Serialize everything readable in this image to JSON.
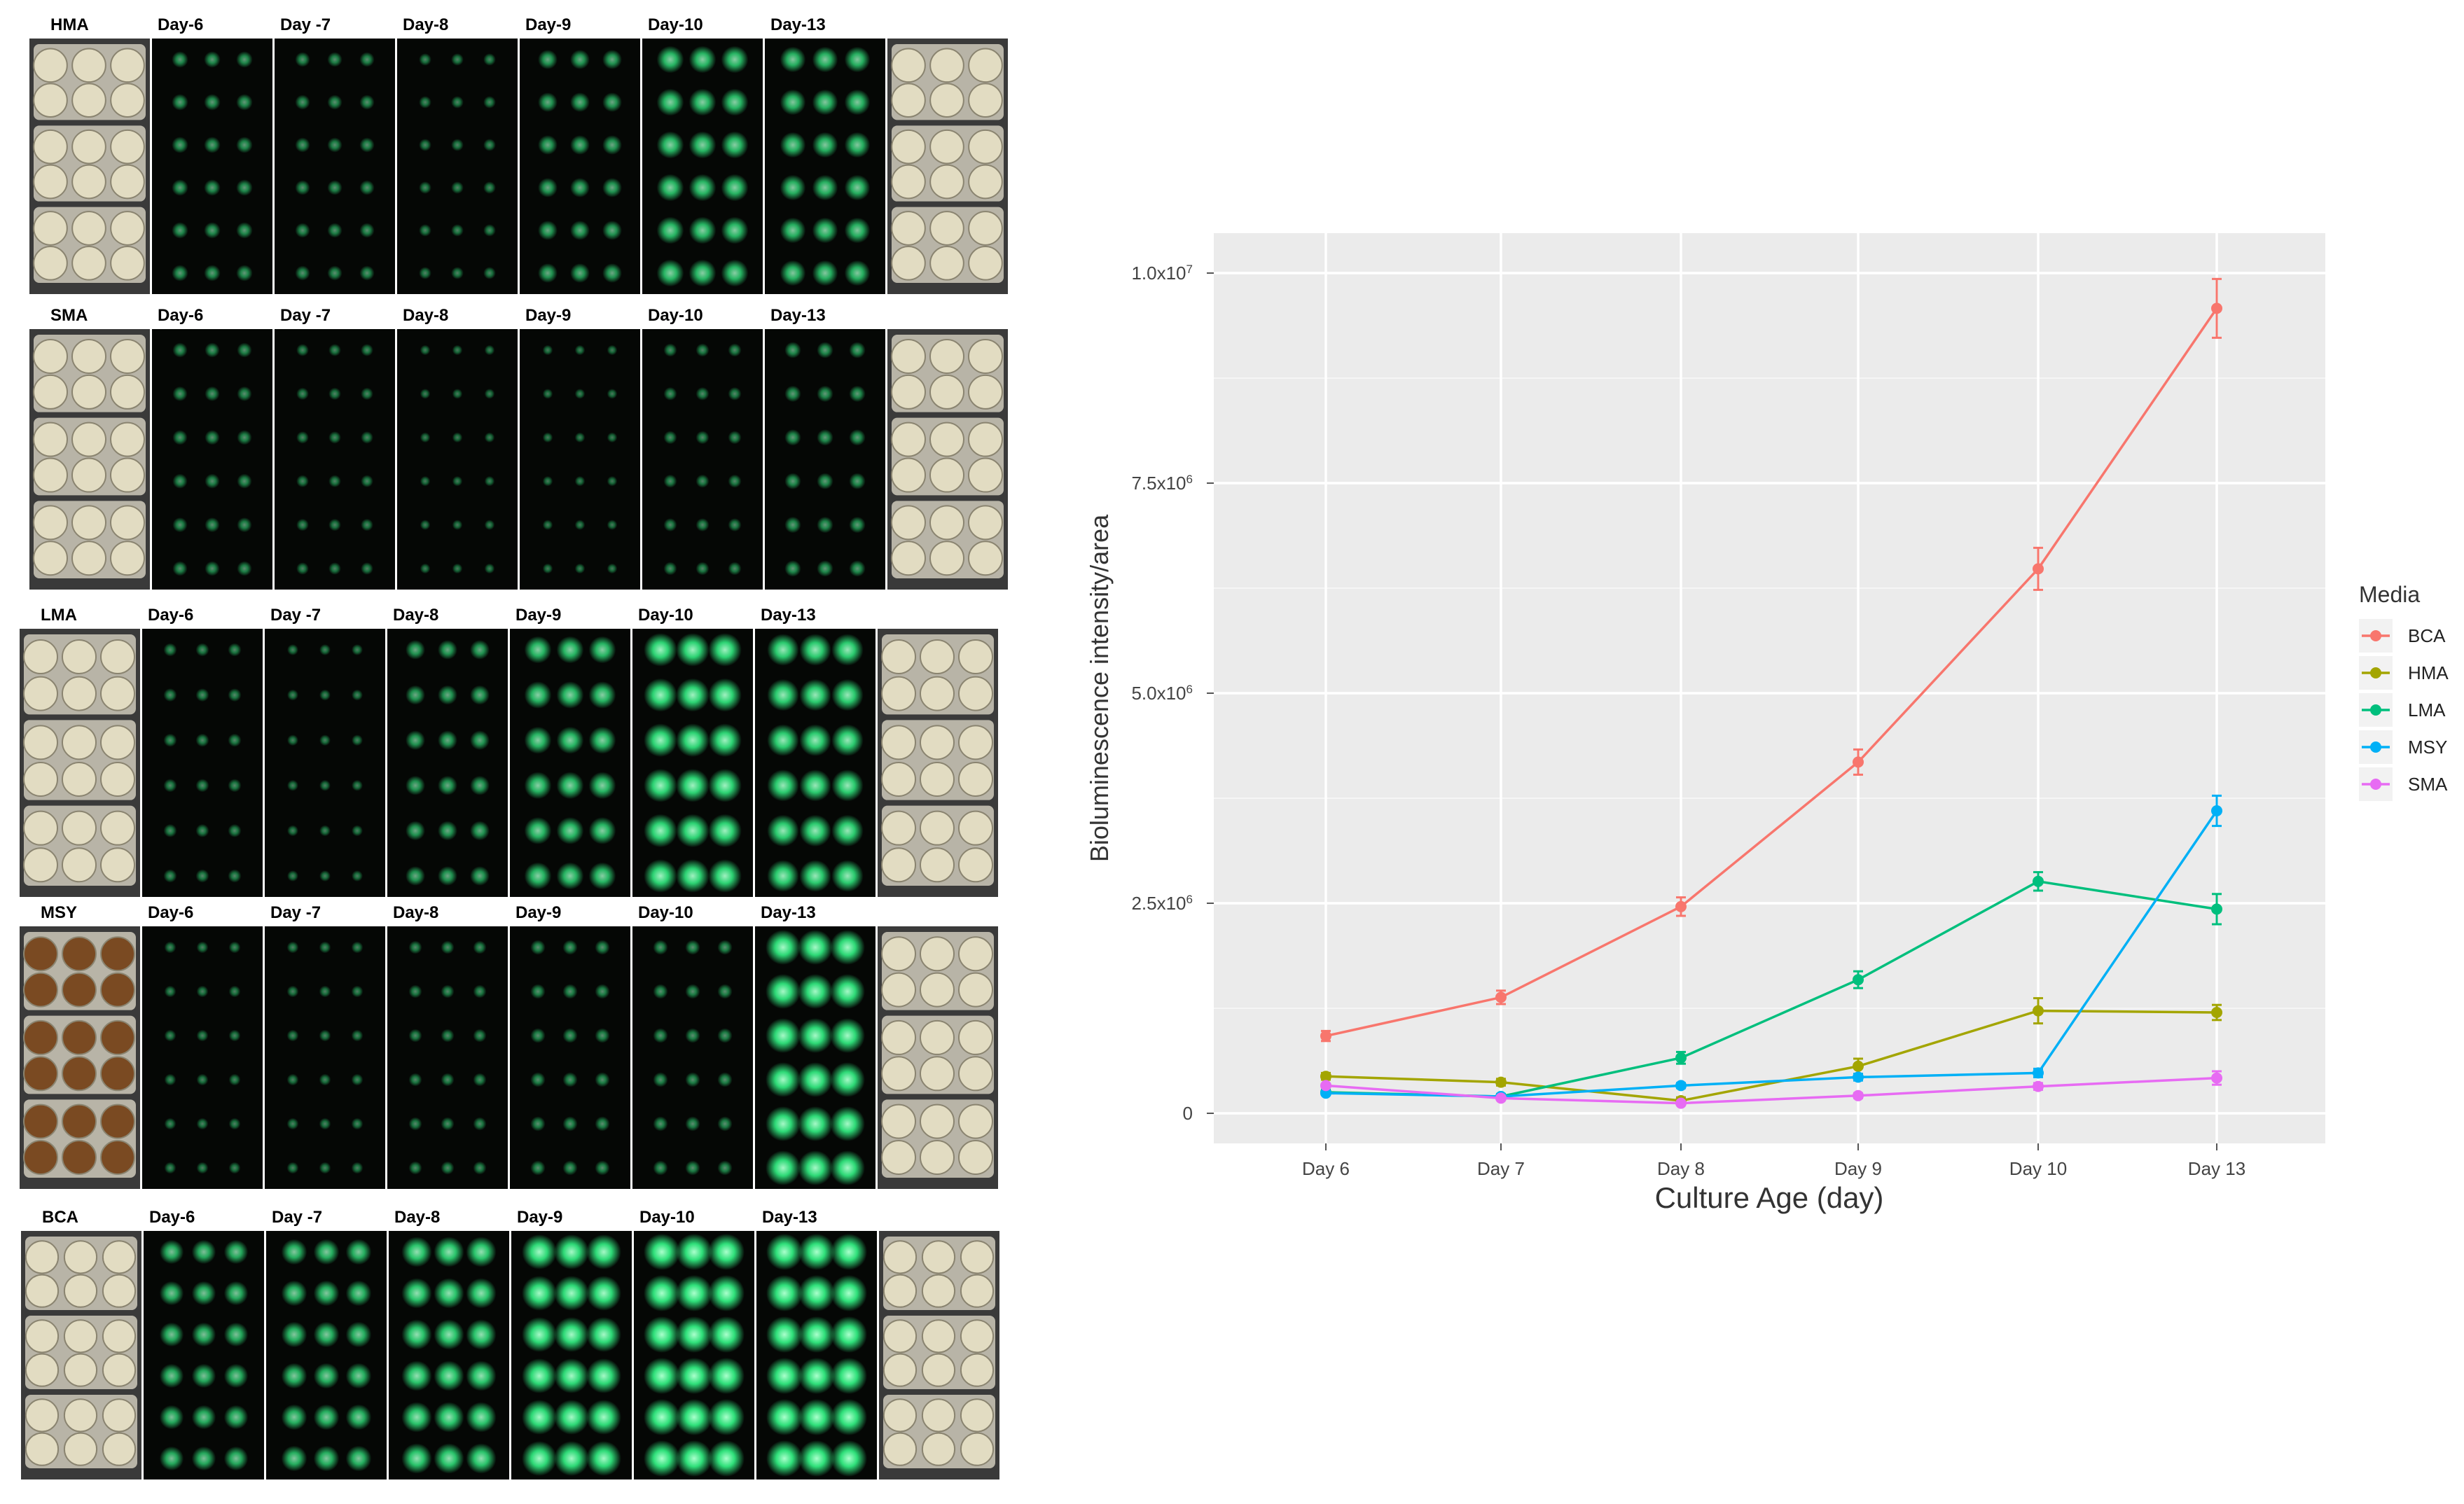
{
  "panels": {
    "day_labels": [
      "Day-6",
      "Day -7",
      "Day-8",
      "Day-9",
      "Day-10",
      "Day-13"
    ],
    "rows": [
      {
        "name": "HMA"
      },
      {
        "name": "SMA"
      },
      {
        "name": "LMA"
      },
      {
        "name": "MSY"
      },
      {
        "name": "BCA"
      }
    ],
    "colors": {
      "glow": "#2fe07a",
      "dark": "#050705",
      "plate_bright": "#e2dcc2",
      "plate_brown": "#7a4a22"
    }
  },
  "chart_data": {
    "type": "line",
    "categories": [
      "Day 6",
      "Day 7",
      "Day 8",
      "Day 9",
      "Day 10",
      "Day 13"
    ],
    "xlabel": "Culture Age (day)",
    "ylabel": "Bioluminescence intensity/area",
    "ylim": [
      0,
      10800000
    ],
    "yticks": [
      {
        "value": 0,
        "base": "0",
        "exp": ""
      },
      {
        "value": 2500000,
        "base": "2.5x10",
        "exp": "6"
      },
      {
        "value": 5000000,
        "base": "5.0x10",
        "exp": "6"
      },
      {
        "value": 7500000,
        "base": "7.5x10",
        "exp": "6"
      },
      {
        "value": 10000000,
        "base": "1.0x10",
        "exp": "7"
      }
    ],
    "grid": true,
    "legend_title": "Media",
    "legend_position": "right",
    "series": [
      {
        "name": "BCA",
        "color": "#F8766D",
        "values": [
          920000,
          1380000,
          2460000,
          4180000,
          6480000,
          9580000
        ],
        "errors": [
          60000,
          80000,
          110000,
          150000,
          250000,
          350000
        ]
      },
      {
        "name": "HMA",
        "color": "#A3A500",
        "values": [
          440000,
          370000,
          150000,
          560000,
          1220000,
          1200000
        ],
        "errors": [
          40000,
          40000,
          40000,
          90000,
          150000,
          90000
        ]
      },
      {
        "name": "LMA",
        "color": "#00BF7D",
        "values": [
          250000,
          200000,
          660000,
          1590000,
          2760000,
          2430000
        ],
        "errors": [
          30000,
          30000,
          70000,
          100000,
          110000,
          180000
        ]
      },
      {
        "name": "MSY",
        "color": "#00B0F6",
        "values": [
          240000,
          200000,
          330000,
          430000,
          480000,
          3600000
        ],
        "errors": [
          20000,
          20000,
          30000,
          40000,
          50000,
          180000
        ]
      },
      {
        "name": "SMA",
        "color": "#E76BF3",
        "values": [
          330000,
          180000,
          120000,
          210000,
          320000,
          420000
        ],
        "errors": [
          20000,
          20000,
          20000,
          30000,
          40000,
          80000
        ]
      }
    ]
  }
}
